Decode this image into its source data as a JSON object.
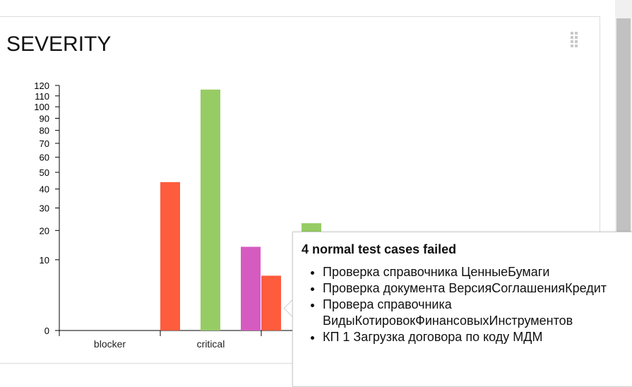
{
  "widget": {
    "title": "SEVERITY",
    "drag_icon": "drag-handle-icon"
  },
  "tooltip": {
    "heading": "4 normal test cases failed",
    "items": [
      "Проверка справочника ЦенныеБумаги",
      "Проверка документа ВерсияСоглашенияКредит",
      "Провера справочника ВидыКотировокФинансовыхИнструментов",
      "КП 1 Загрузка договора по коду МДМ"
    ]
  },
  "chart_data": {
    "type": "bar",
    "categories": [
      "blocker",
      "critical",
      ""
    ],
    "series": [
      {
        "color": "#ff5c3d",
        "values": [
          0,
          44,
          6
        ]
      },
      {
        "color": "#97cc64",
        "values": [
          0,
          116,
          23
        ]
      },
      {
        "color": "#d65bc0",
        "values": [
          0,
          0,
          14
        ]
      }
    ],
    "y_ticks": [
      0,
      10,
      20,
      30,
      40,
      50,
      60,
      70,
      80,
      90,
      100,
      110,
      120
    ],
    "ylim": [
      0,
      120
    ],
    "y_scale": "sqrt"
  }
}
